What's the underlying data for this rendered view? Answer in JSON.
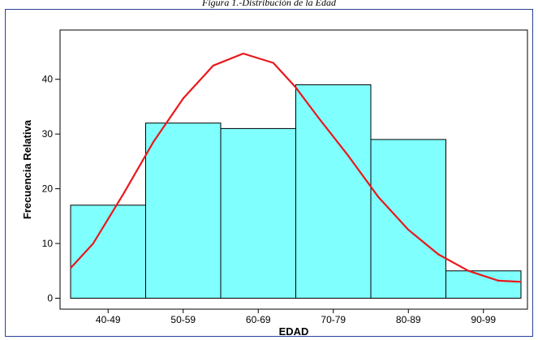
{
  "caption": "Figura 1.-Distribución de la Edad",
  "colors": {
    "bar_fill": "#80ffff",
    "bar_stroke": "#000000",
    "curve": "#e8181c",
    "frame": "#2a3f9a"
  },
  "chart_data": {
    "type": "bar",
    "title": "",
    "xlabel": "EDAD",
    "ylabel": "Frecuencia Relativa",
    "categories": [
      "40-49",
      "50-59",
      "60-69",
      "70-79",
      "80-89",
      "90-99"
    ],
    "values": [
      17,
      32,
      31,
      39,
      29,
      5
    ],
    "ylim": [
      -2,
      49
    ],
    "yticks": [
      0,
      10,
      20,
      30,
      40
    ],
    "grid": false,
    "overlay_curve": {
      "type": "line",
      "description_x_units": "category position",
      "x": [
        -0.5,
        -0.2,
        0.2,
        0.6,
        1.0,
        1.4,
        1.8,
        2.2,
        2.5,
        2.8,
        3.2,
        3.6,
        4.0,
        4.4,
        4.8,
        5.2,
        5.5
      ],
      "y": [
        5.5,
        10,
        19,
        28.5,
        36.5,
        42.5,
        44.7,
        43,
        38.5,
        33,
        26,
        18.5,
        12.5,
        8,
        5,
        3.2,
        3
      ]
    }
  }
}
